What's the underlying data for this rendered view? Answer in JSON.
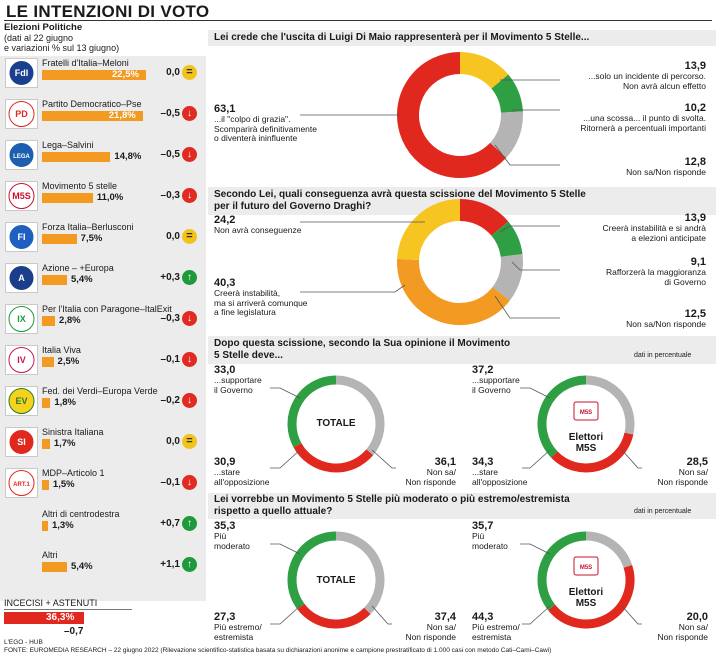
{
  "page": {
    "title": "LE INTENZIONI DI VOTO",
    "subtitle_bold": "Elezioni Politiche",
    "subtitle_lines": [
      "(dati al 22 giugno",
      "e variazioni % sul 13 giugno)"
    ],
    "undecided_label": "INCECISI + ASTENUTI",
    "undecided_value": "36,3%",
    "undecided_pct": 36.3,
    "undecided_delta": "–0,7",
    "credit": "L'EGO - HUB",
    "source": "FONTE: EUROMEDIA RESEARCH – 22 giugno 2022 (Rilevazione scientifico-statistica basata su dichiarazioni anonime e campione prestratificato di 1.000 casi con metodo Cati–Cami–Cawi)",
    "unit_note": "dati in percentuale"
  },
  "colors": {
    "bar_orange": "#f39a22",
    "red": "#e0281f",
    "yellow": "#f6c522",
    "green": "#2ea043",
    "grey": "#b4b4b4",
    "orange": "#f39a22"
  },
  "parties": [
    {
      "name": "Fratelli d'Italia–Meloni",
      "value": "22,5%",
      "pct": 22.5,
      "delta": "0,0",
      "trend": "eq",
      "logo": "fdi-logo"
    },
    {
      "name": "Partito Democratico–Pse",
      "value": "21,8%",
      "pct": 21.8,
      "delta": "–0,5",
      "trend": "down",
      "logo": "pd-logo"
    },
    {
      "name": "Lega–Salvini",
      "value": "14,8%",
      "pct": 14.8,
      "delta": "–0,5",
      "trend": "down",
      "logo": "lega-logo"
    },
    {
      "name": "Movimento 5 stelle",
      "value": "11,0%",
      "pct": 11.0,
      "delta": "–0,3",
      "trend": "down",
      "logo": "m5s-logo"
    },
    {
      "name": "Forza Italia–Berlusconi",
      "value": "7,5%",
      "pct": 7.5,
      "delta": "0,0",
      "trend": "eq",
      "logo": "fi-logo"
    },
    {
      "name": "Azione – +Europa",
      "value": "5,4%",
      "pct": 5.4,
      "delta": "+0,3",
      "trend": "up",
      "logo": "azione-logo"
    },
    {
      "name": "Per l'Italia con Paragone–ItalExit",
      "value": "2,8%",
      "pct": 2.8,
      "delta": "–0,3",
      "trend": "down",
      "logo": "italexit-logo"
    },
    {
      "name": "Italia Viva",
      "value": "2,5%",
      "pct": 2.5,
      "delta": "–0,1",
      "trend": "down",
      "logo": "iv-logo"
    },
    {
      "name": "Fed. dei Verdi–Europa Verde",
      "value": "1,8%",
      "pct": 1.8,
      "delta": "–0,2",
      "trend": "down",
      "logo": "verdi-logo"
    },
    {
      "name": "Sinistra Italiana",
      "value": "1,7%",
      "pct": 1.7,
      "delta": "0,0",
      "trend": "eq",
      "logo": "si-logo"
    },
    {
      "name": "MDP–Articolo 1",
      "value": "1,5%",
      "pct": 1.5,
      "delta": "–0,1",
      "trend": "down",
      "logo": "art1-logo"
    },
    {
      "name": "Altri di centrodestra",
      "value": "1,3%",
      "pct": 1.3,
      "delta": "+0,7",
      "trend": "up",
      "logo": ""
    },
    {
      "name": "Altri",
      "value": "5,4%",
      "pct": 5.4,
      "delta": "+1,1",
      "trend": "up",
      "logo": ""
    }
  ],
  "chart_data": [
    {
      "type": "bar",
      "title": "LE INTENZIONI DI VOTO",
      "categories": [
        "Fratelli d'Italia–Meloni",
        "Partito Democratico–Pse",
        "Lega–Salvini",
        "Movimento 5 stelle",
        "Forza Italia–Berlusconi",
        "Azione – +Europa",
        "Per l'Italia con Paragone–ItalExit",
        "Italia Viva",
        "Fed. dei Verdi–Europa Verde",
        "Sinistra Italiana",
        "MDP–Articolo 1",
        "Altri di centrodestra",
        "Altri"
      ],
      "values": [
        22.5,
        21.8,
        14.8,
        11.0,
        7.5,
        5.4,
        2.8,
        2.5,
        1.8,
        1.7,
        1.5,
        1.3,
        5.4
      ],
      "change": [
        0.0,
        -0.5,
        -0.5,
        -0.3,
        0.0,
        0.3,
        -0.3,
        -0.1,
        -0.2,
        0.0,
        -0.1,
        0.7,
        1.1
      ]
    },
    {
      "type": "pie",
      "title": "Lei crede che l'uscita di Luigi Di Maio rappresenterà per il Movimento 5 Stelle...",
      "slices": [
        {
          "label": "...il \"colpo di grazia\". Scomparirà definitivamente o diventerà ininfluente",
          "value": 63.1,
          "color": "red"
        },
        {
          "label": "...solo un incidente di percorso. Non avrà alcun effetto",
          "value": 13.9,
          "color": "yellow"
        },
        {
          "label": "...una scossa... il punto di svolta. Ritornerà a percentuali importanti",
          "value": 10.2,
          "color": "green"
        },
        {
          "label": "Non sa/Non risponde",
          "value": 12.8,
          "color": "grey"
        }
      ]
    },
    {
      "type": "pie",
      "title": "Secondo Lei, quali conseguenza avrà questa scissione del Movimento 5 Stelle per il futuro del Governo Draghi?",
      "slices": [
        {
          "label": "Non avrà conseguenze",
          "value": 24.2,
          "color": "yellow"
        },
        {
          "label": "Creerà instabilità e si andrà a elezioni anticipate",
          "value": 13.9,
          "color": "red"
        },
        {
          "label": "Rafforzerà la maggioranza di Governo",
          "value": 9.1,
          "color": "green"
        },
        {
          "label": "Non sa/Non risponde",
          "value": 12.5,
          "color": "grey"
        },
        {
          "label": "Creerà instabilità, ma si arriverà comunque a fine legislatura",
          "value": 40.3,
          "color": "orange"
        }
      ]
    },
    {
      "type": "pie",
      "title": "Dopo questa scissione, secondo la Sua opinione il Movimento 5 Stelle deve...",
      "groups": [
        {
          "name": "TOTALE",
          "slices": [
            {
              "label": "...supportare il Governo",
              "value": 33.0,
              "color": "green"
            },
            {
              "label": "Non sa/Non risponde",
              "value": 36.1,
              "color": "grey"
            },
            {
              "label": "...stare all'opposizione",
              "value": 30.9,
              "color": "red"
            }
          ]
        },
        {
          "name": "Elettori M5S",
          "slices": [
            {
              "label": "...supportare il Governo",
              "value": 37.2,
              "color": "green"
            },
            {
              "label": "Non sa/Non risponde",
              "value": 28.5,
              "color": "grey"
            },
            {
              "label": "...stare all'opposizione",
              "value": 34.3,
              "color": "red"
            }
          ]
        }
      ]
    },
    {
      "type": "pie",
      "title": "Lei vorrebbe un Movimento 5 Stelle più moderato o più estremo/estremista rispetto a quello attuale?",
      "groups": [
        {
          "name": "TOTALE",
          "slices": [
            {
              "label": "Più moderato",
              "value": 35.3,
              "color": "green"
            },
            {
              "label": "Non sa/Non risponde",
              "value": 37.4,
              "color": "grey"
            },
            {
              "label": "Più estremo/estremista",
              "value": 27.3,
              "color": "red"
            }
          ]
        },
        {
          "name": "Elettori M5S",
          "slices": [
            {
              "label": "Più moderato",
              "value": 35.7,
              "color": "green"
            },
            {
              "label": "Non sa/Non risponde",
              "value": 20.0,
              "color": "grey"
            },
            {
              "label": "Più estremo/estremista",
              "value": 44.3,
              "color": "red"
            }
          ]
        }
      ]
    }
  ],
  "q1": {
    "question": "Lei crede che l'uscita di Luigi Di Maio rappresenterà per il Movimento 5 Stelle...",
    "a_value": "63,1",
    "a_label": [
      "...il \"colpo di grazia\".",
      "Scomparirà definitivamente",
      "o diventerà ininfluente"
    ],
    "b_value": "13,9",
    "b_label": [
      "...solo un incidente di percorso.",
      "Non avrà alcun effetto"
    ],
    "c_value": "10,2",
    "c_label": [
      "...una scossa... il punto di svolta.",
      "Ritornerà a percentuali importanti"
    ],
    "d_value": "12,8",
    "d_label": [
      "Non sa/Non risponde"
    ]
  },
  "q2": {
    "question_lines": [
      "Secondo Lei, quali conseguenza avrà questa scissione del Movimento 5 Stelle",
      "per il futuro del Governo Draghi?"
    ],
    "a_value": "24,2",
    "a_label": [
      "Non avrà conseguenze"
    ],
    "b_value": "13,9",
    "b_label": [
      "Creerà instabilità e si andrà",
      "a elezioni anticipate"
    ],
    "c_value": "9,1",
    "c_label": [
      "Rafforzerà la maggioranza",
      "di Governo"
    ],
    "d_value": "12,5",
    "d_label": [
      "Non sa/Non risponde"
    ],
    "e_value": "40,3",
    "e_label": [
      "Creerà instabilità,",
      "ma si arriverà comunque",
      "a fine legislatura"
    ]
  },
  "q3": {
    "question_lines": [
      "Dopo questa scissione, secondo la Sua opinione il Movimento",
      "5 Stelle deve..."
    ],
    "tot_name": "TOTALE",
    "m5s_name": [
      "Elettori",
      "M5S"
    ],
    "tot_a_value": "33,0",
    "tot_a_label": [
      "...supportare",
      "il Governo"
    ],
    "tot_b_value": "36,1",
    "tot_b_label": [
      "Non sa/",
      "Non risponde"
    ],
    "tot_c_value": "30,9",
    "tot_c_label": [
      "...stare",
      "all'opposizione"
    ],
    "m5s_a_value": "37,2",
    "m5s_a_label": [
      "...supportare",
      "il Governo"
    ],
    "m5s_b_value": "28,5",
    "m5s_b_label": [
      "Non sa/",
      "Non risponde"
    ],
    "m5s_c_value": "34,3",
    "m5s_c_label": [
      "...stare",
      "all'opposizione"
    ]
  },
  "q4": {
    "question_lines": [
      "Lei vorrebbe un Movimento 5 Stelle più moderato o più estremo/estremista",
      "rispetto a quello attuale?"
    ],
    "tot_name": "TOTALE",
    "m5s_name": [
      "Elettori",
      "M5S"
    ],
    "tot_a_value": "35,3",
    "tot_a_label": [
      "Più",
      "moderato"
    ],
    "tot_b_value": "37,4",
    "tot_b_label": [
      "Non sa/",
      "Non risponde"
    ],
    "tot_c_value": "27,3",
    "tot_c_label": [
      "Più estremo/",
      "estremista"
    ],
    "m5s_a_value": "35,7",
    "m5s_a_label": [
      "Più",
      "moderato"
    ],
    "m5s_b_value": "20,0",
    "m5s_b_label": [
      "Non sa/",
      "Non risponde"
    ],
    "m5s_c_value": "44,3",
    "m5s_c_label": [
      "Più estremo/",
      "estremista"
    ]
  }
}
